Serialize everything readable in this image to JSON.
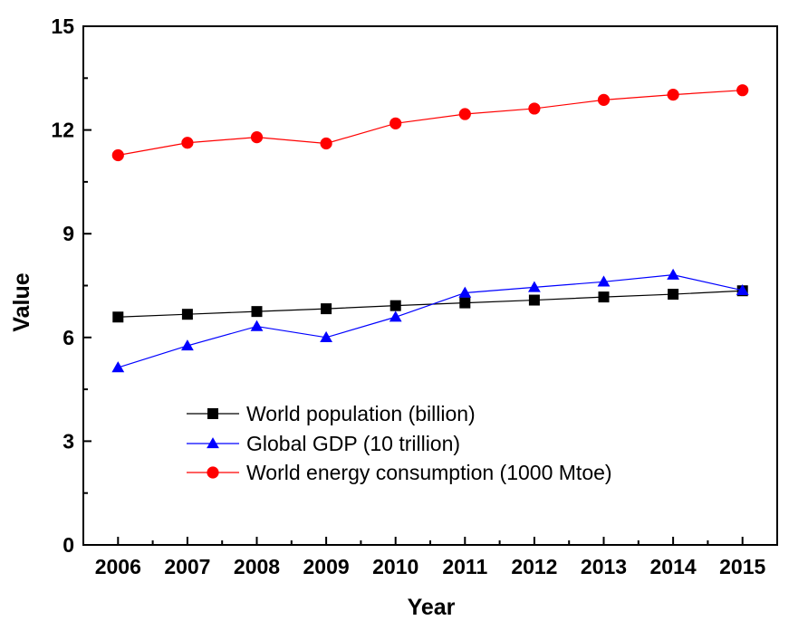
{
  "chart_data": {
    "type": "line",
    "xlabel": "Year",
    "ylabel": "Value",
    "x": [
      2006,
      2007,
      2008,
      2009,
      2010,
      2011,
      2012,
      2013,
      2014,
      2015
    ],
    "xlim": [
      2005.5,
      2015.5
    ],
    "ylim": [
      0,
      15
    ],
    "yticks": [
      0,
      3,
      6,
      9,
      12,
      15
    ],
    "grid": false,
    "legend_position": "bottom-center",
    "series": [
      {
        "name": "World population (billion)",
        "marker": "square",
        "color": "#000000",
        "fill": "#000000",
        "values": [
          6.59,
          6.67,
          6.75,
          6.83,
          6.92,
          7.0,
          7.08,
          7.17,
          7.25,
          7.35
        ]
      },
      {
        "name": "Global GDP (10 trillion)",
        "marker": "triangle",
        "color": "#0000ff",
        "fill": "#0000ff",
        "values": [
          5.13,
          5.76,
          6.32,
          6.0,
          6.59,
          7.29,
          7.45,
          7.61,
          7.81,
          7.36
        ]
      },
      {
        "name": "World energy consumption (1000 Mtoe)",
        "marker": "circle",
        "color": "#ff0000",
        "fill": "#ff0000",
        "values": [
          11.27,
          11.63,
          11.79,
          11.61,
          12.19,
          12.46,
          12.62,
          12.87,
          13.02,
          13.15
        ]
      }
    ]
  }
}
